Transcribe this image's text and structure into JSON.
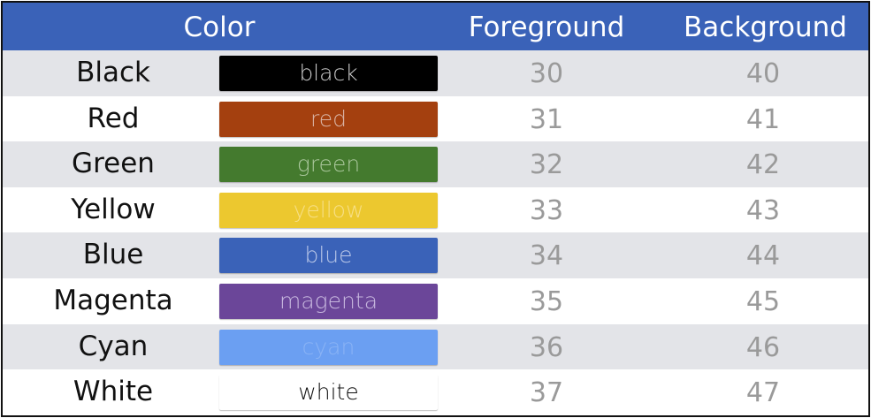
{
  "header": {
    "color": "Color",
    "foreground": "Foreground",
    "background": "Background"
  },
  "colors": {
    "header_bg": "#3a62b8",
    "stripe": "#e3e4e8",
    "code_text": "#9a9a9a"
  },
  "rows": [
    {
      "name": "Black",
      "swatch_label": "black",
      "swatch_color": "#000000",
      "label_color": "#c9c9c9",
      "fg": "30",
      "bg": "40"
    },
    {
      "name": "Red",
      "swatch_label": "red",
      "swatch_color": "#a4400f",
      "label_color": "#d9b3a4",
      "fg": "31",
      "bg": "41"
    },
    {
      "name": "Green",
      "swatch_label": "green",
      "swatch_color": "#447a2e",
      "label_color": "#a9c69b",
      "fg": "32",
      "bg": "42"
    },
    {
      "name": "Yellow",
      "swatch_label": "yellow",
      "swatch_color": "#ecc82f",
      "label_color": "#f7df86",
      "fg": "33",
      "bg": "43"
    },
    {
      "name": "Blue",
      "swatch_label": "blue",
      "swatch_color": "#3a62b8",
      "label_color": "#b9c7e8",
      "fg": "34",
      "bg": "44"
    },
    {
      "name": "Magenta",
      "swatch_label": "magenta",
      "swatch_color": "#6b4699",
      "label_color": "#c7b7de",
      "fg": "35",
      "bg": "45"
    },
    {
      "name": "Cyan",
      "swatch_label": "cyan",
      "swatch_color": "#6b9ff2",
      "label_color": "#8ab3f5",
      "fg": "36",
      "bg": "46"
    },
    {
      "name": "White",
      "swatch_label": "white",
      "swatch_color": "#ffffff",
      "label_color": "#111111",
      "fg": "37",
      "bg": "47"
    }
  ]
}
